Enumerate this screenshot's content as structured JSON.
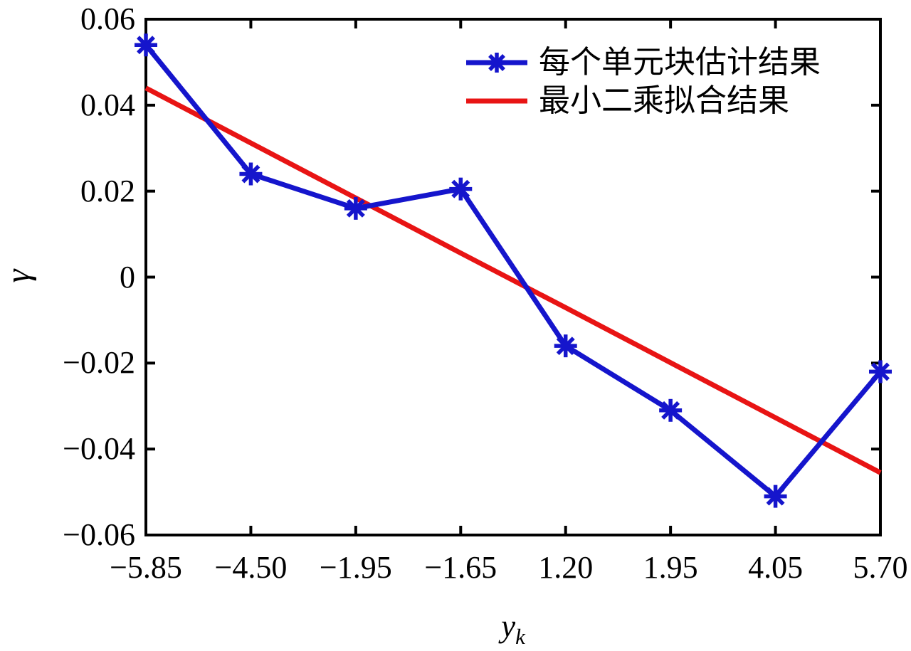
{
  "chart_data": {
    "type": "line",
    "title": "",
    "xlabel": {
      "main": "y",
      "sub": "k"
    },
    "ylabel": "γ",
    "background": "#ffffff",
    "axis_color": "#000000",
    "grid": false,
    "legend_position": "top-right",
    "legend_border": false,
    "x_axis_type": "categorical-evenly-spaced",
    "x_values": [
      -5.85,
      -4.5,
      -1.95,
      -1.65,
      1.2,
      1.95,
      4.05,
      5.7
    ],
    "x_tick_labels": [
      "−5.85",
      "−4.50",
      "−1.95",
      "−1.65",
      "1.20",
      "1.95",
      "4.05",
      "5.70"
    ],
    "ylim": [
      -0.06,
      0.06
    ],
    "y_ticks": [
      0.06,
      0.04,
      0.02,
      0,
      -0.02,
      -0.04,
      -0.06
    ],
    "y_tick_labels": [
      "0.06",
      "0.04",
      "0.02",
      "0",
      "−0.02",
      "−0.04",
      "−0.06"
    ],
    "series": [
      {
        "name": "每个单元块估计结果",
        "type": "line",
        "marker": "asterisk",
        "color": "#1515cc",
        "values": [
          0.054,
          0.024,
          0.016,
          0.0205,
          -0.016,
          -0.031,
          -0.051,
          -0.022
        ]
      },
      {
        "name": "最小二乘拟合结果",
        "type": "line",
        "marker": "none",
        "color": "#e81414",
        "fit": "least-squares straight line",
        "values": [
          0.044,
          0.0312,
          0.0184,
          0.0056,
          -0.0071,
          -0.0199,
          -0.0327,
          -0.0455
        ]
      }
    ]
  }
}
